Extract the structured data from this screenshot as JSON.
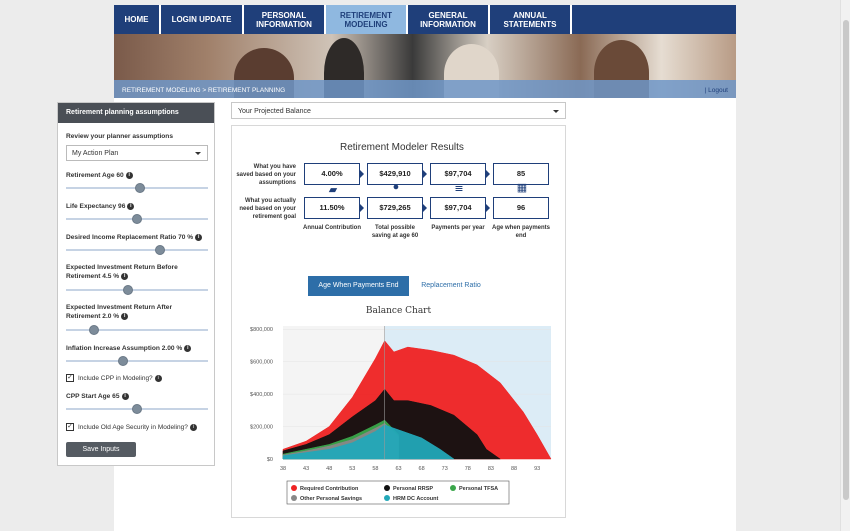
{
  "nav": [
    {
      "label": "HOME",
      "width": 47,
      "active": false
    },
    {
      "label": "LOGIN UPDATE",
      "width": 83,
      "active": false
    },
    {
      "label": "PERSONAL\nINFORMATION",
      "width": 82,
      "active": false
    },
    {
      "label": "RETIREMENT\nMODELING",
      "width": 82,
      "active": true
    },
    {
      "label": "GENERAL\nINFORMATION",
      "width": 82,
      "active": false
    },
    {
      "label": "ANNUAL\nSTATEMENTS",
      "width": 82,
      "active": false
    }
  ],
  "breadcrumb": "RETIREMENT MODELING >  RETIREMENT PLANNING",
  "logout": "| Logout",
  "left": {
    "title": "Retirement planning assumptions",
    "review_label": "Review your planner assumptions",
    "plan_value": "My Action Plan",
    "retirement_age": "Retirement Age 60",
    "life_expectancy": "Life Expectancy 96",
    "income_ratio": "Desired Income Replacement Ratio 70 %",
    "return_before_1": "Expected Investment Return Before",
    "return_before_2": "Retirement 4.5 %",
    "return_after_1": "Expected Investment Return After",
    "return_after_2": "Retirement 2.0 %",
    "inflation": "Inflation Increase Assumption 2.00 %",
    "include_cpp": "Include CPP in Modeling?",
    "cpp_start": "CPP Start Age 65",
    "include_oas": "Include Old Age Security in Modeling?",
    "save": "Save Inputs",
    "slider_levels": [
      0.52,
      0.5,
      0.66,
      0.44,
      0.2,
      0.4,
      0.5
    ]
  },
  "right": {
    "dropdown": "Your Projected Balance",
    "title": "Retirement Modeler Results",
    "row1_label": "What you have saved based on your assumptions",
    "row2_label": "What you actually need based on your retirement goal",
    "row1": [
      "4.00%",
      "$429,910",
      "$97,704",
      "85"
    ],
    "row2": [
      "11.50%",
      "$729,265",
      "$97,704",
      "96"
    ],
    "cols": [
      "Annual Contribution",
      "Total possible saving at age 60",
      "Payments per year",
      "Age when payments end"
    ],
    "tab_active": "Age When Payments End",
    "tab_other": "Replacement Ratio",
    "chart_title": "Balance Chart"
  },
  "chart_data": {
    "type": "area",
    "title": "Balance Chart",
    "x_ticks": [
      "38",
      "43",
      "48",
      "53",
      "58",
      "63",
      "68",
      "73",
      "78",
      "83",
      "88",
      "93"
    ],
    "y_ticks": [
      "$0",
      "$200,000",
      "$400,000",
      "$600,000",
      "$800,000"
    ],
    "ylim": [
      0,
      820000
    ],
    "xlim": [
      38,
      96
    ],
    "retirement_age": 60,
    "series": [
      {
        "name": "Required Contribution",
        "color": "#ee2222",
        "x": [
          38,
          43,
          48,
          53,
          58,
          60,
          62,
          65,
          70,
          75,
          80,
          85,
          90,
          93,
          96
        ],
        "values": [
          60000,
          110000,
          200000,
          380000,
          620000,
          729000,
          660000,
          690000,
          670000,
          640000,
          580000,
          470000,
          290000,
          150000,
          0
        ]
      },
      {
        "name": "Personal RRSP",
        "color": "#111111",
        "x": [
          38,
          43,
          48,
          53,
          58,
          60,
          62,
          65,
          70,
          75,
          80,
          82,
          85
        ],
        "values": [
          50000,
          90000,
          150000,
          260000,
          360000,
          430000,
          360000,
          360000,
          330000,
          270000,
          150000,
          60000,
          0
        ]
      },
      {
        "name": "Personal TFSA",
        "color": "#3aa64a",
        "x": [
          38,
          43,
          48,
          53,
          58,
          60,
          63
        ],
        "values": [
          30000,
          60000,
          90000,
          140000,
          210000,
          240000,
          150000
        ]
      },
      {
        "name": "Other Personal Savings",
        "color": "#888888",
        "x": [
          38,
          43,
          48,
          53,
          58,
          60,
          63
        ],
        "values": [
          25000,
          50000,
          80000,
          120000,
          190000,
          220000,
          140000
        ]
      },
      {
        "name": "HRM DC Account",
        "color": "#22a8b8",
        "x": [
          38,
          43,
          48,
          53,
          58,
          60,
          63,
          68,
          72,
          75
        ],
        "values": [
          20000,
          40000,
          60000,
          100000,
          170000,
          210000,
          180000,
          130000,
          60000,
          0
        ]
      }
    ],
    "legend": "bottom"
  }
}
